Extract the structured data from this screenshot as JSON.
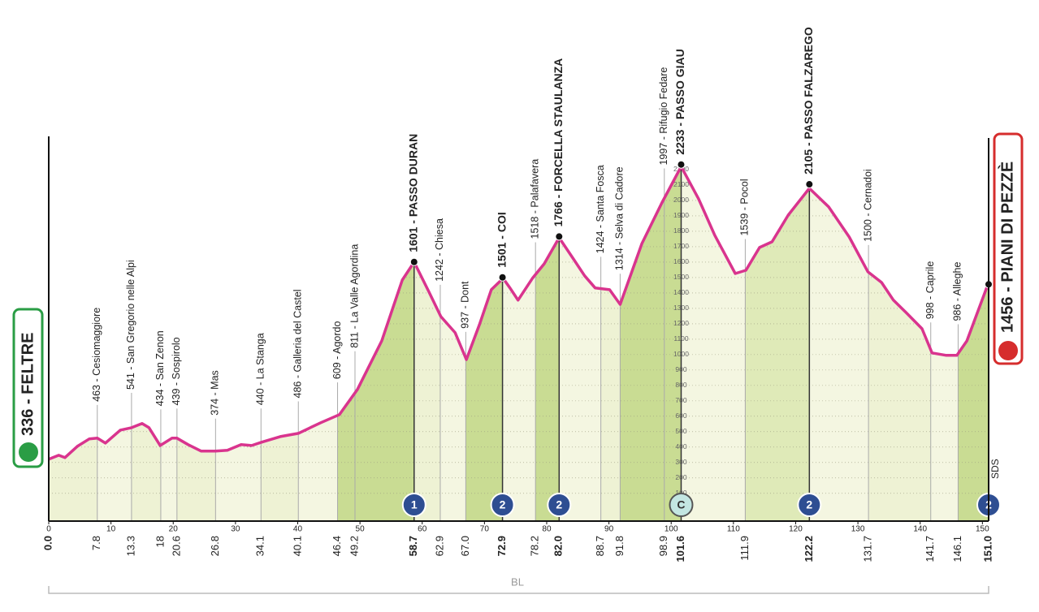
{
  "chart_data": {
    "type": "profile",
    "xlim": [
      0,
      151
    ],
    "ylim": [
      -80,
      2400
    ],
    "xticks": [
      0,
      10,
      20,
      30,
      40,
      50,
      60,
      70,
      80,
      90,
      100,
      110,
      120,
      130,
      140,
      150
    ],
    "yticks": [
      100,
      200,
      300,
      400,
      500,
      600,
      700,
      800,
      900,
      1000,
      1100,
      1200,
      1300,
      1400,
      1500,
      1600,
      1700,
      1800,
      1900,
      2000,
      2100,
      2200
    ],
    "color": "#d9348e",
    "grid": true,
    "profile": {
      "x": [
        0,
        1.6,
        2.6,
        4.6,
        6.5,
        7.8,
        9.1,
        11.5,
        13.3,
        15.0,
        16.1,
        17.9,
        19.8,
        20.6,
        22.4,
        24.5,
        26.8,
        28.7,
        30.9,
        32.6,
        34.2,
        37.2,
        40.1,
        43.7,
        46.7,
        49.6,
        53.5,
        56.8,
        58.7,
        61.1,
        63.0,
        65.3,
        67.1,
        69.2,
        71.1,
        73.0,
        74.1,
        75.4,
        77.7,
        79.6,
        82.0,
        84.2,
        86.1,
        87.8,
        90.1,
        91.8,
        95.3,
        98.5,
        101.6,
        104.4,
        107.0,
        110.3,
        112.0,
        114.2,
        116.2,
        118.8,
        122.2,
        125.3,
        128.6,
        131.6,
        133.8,
        135.7,
        137.7,
        140.3,
        141.9,
        144.2,
        145.9,
        147.5,
        151.0
      ],
      "values": [
        321,
        347,
        332,
        405,
        453,
        458,
        426,
        510,
        526,
        553,
        526,
        410,
        458,
        458,
        416,
        374,
        374,
        379,
        416,
        410,
        432,
        468,
        489,
        558,
        611,
        774,
        1089,
        1484,
        1600,
        1405,
        1247,
        1142,
        968,
        1195,
        1421,
        1495,
        1432,
        1353,
        1495,
        1589,
        1758,
        1626,
        1511,
        1432,
        1421,
        1326,
        1721,
        1984,
        2220,
        2011,
        1774,
        1526,
        1547,
        1695,
        1732,
        1905,
        2079,
        1958,
        1763,
        1537,
        1468,
        1353,
        1274,
        1168,
        1011,
        995,
        995,
        1089,
        1468
      ]
    },
    "start": {
      "km": {
        "value": 0,
        "label": "0.0"
      },
      "altitude": 336,
      "label": "336 - FELTRE"
    },
    "finish": {
      "km": {
        "value": 151,
        "label": "151.0"
      },
      "altitude": 1456,
      "label": "1456 - PIANI DI PEZZÈ",
      "gpm": "2"
    },
    "waypoints": [
      {
        "km": 7.8,
        "altitude": 463,
        "label": "463 - Cesiomaggiore"
      },
      {
        "km": 13.3,
        "altitude": 541,
        "label": "541 - San Gregorio nelle Alpi"
      },
      {
        "km": 18.0,
        "altitude": 434,
        "label": "434 - San Zenon"
      },
      {
        "km": 20.6,
        "altitude": 439,
        "label": "439 - Sospirolo"
      },
      {
        "km": 26.8,
        "altitude": 374,
        "label": "374 - Mas"
      },
      {
        "km": 34.1,
        "altitude": 440,
        "label": "440 - La Stanga"
      },
      {
        "km": 40.1,
        "altitude": 486,
        "label": "486 - Galleria del Castel"
      },
      {
        "km": 46.4,
        "altitude": 609,
        "label": "609 - Agordo"
      },
      {
        "km": 49.2,
        "altitude": 811,
        "label": "811 - La Valle Agordina"
      },
      {
        "km": 58.7,
        "altitude": 1601,
        "label": "1601 - PASSO DURAN",
        "gpm": "1"
      },
      {
        "km": 62.9,
        "altitude": 1242,
        "label": "1242 - Chiesa"
      },
      {
        "km": {
          "value": 67,
          "label": "67.0"
        },
        "altitude": 937,
        "label": "937 - Dont"
      },
      {
        "km": 72.9,
        "altitude": 1501,
        "label": "1501 - COI",
        "gpm": "2"
      },
      {
        "km": 78.2,
        "altitude": 1518,
        "label": "1518 - Palafavera"
      },
      {
        "km": {
          "value": 82,
          "label": "82.0"
        },
        "altitude": 1766,
        "label": "1766 - FORCELLA STAULANZA",
        "gpm": "2"
      },
      {
        "km": 88.7,
        "altitude": 1424,
        "label": "1424 - Santa Fosca"
      },
      {
        "km": 91.8,
        "altitude": 1314,
        "label": "1314 - Selva di Cadore"
      },
      {
        "km": 98.9,
        "altitude": 1997,
        "label": "1997 - Rifugio Fedare"
      },
      {
        "km": 101.6,
        "altitude": 2233,
        "label": "2233 - PASSO GIAU",
        "gpm": "C"
      },
      {
        "km": 111.9,
        "altitude": 1539,
        "label": "1539 - Pocol"
      },
      {
        "km": 122.2,
        "altitude": 2105,
        "label": "2105 - PASSO FALZAREGO",
        "gpm": "2"
      },
      {
        "km": 131.7,
        "altitude": 1500,
        "label": "1500 - Cernadoi"
      },
      {
        "km": 141.7,
        "altitude": 998,
        "label": "998 - Caprile"
      },
      {
        "km": 146.1,
        "altitude": 986,
        "label": "986 - Alleghe"
      }
    ],
    "sprint_label": "SDS",
    "province": "BL"
  }
}
